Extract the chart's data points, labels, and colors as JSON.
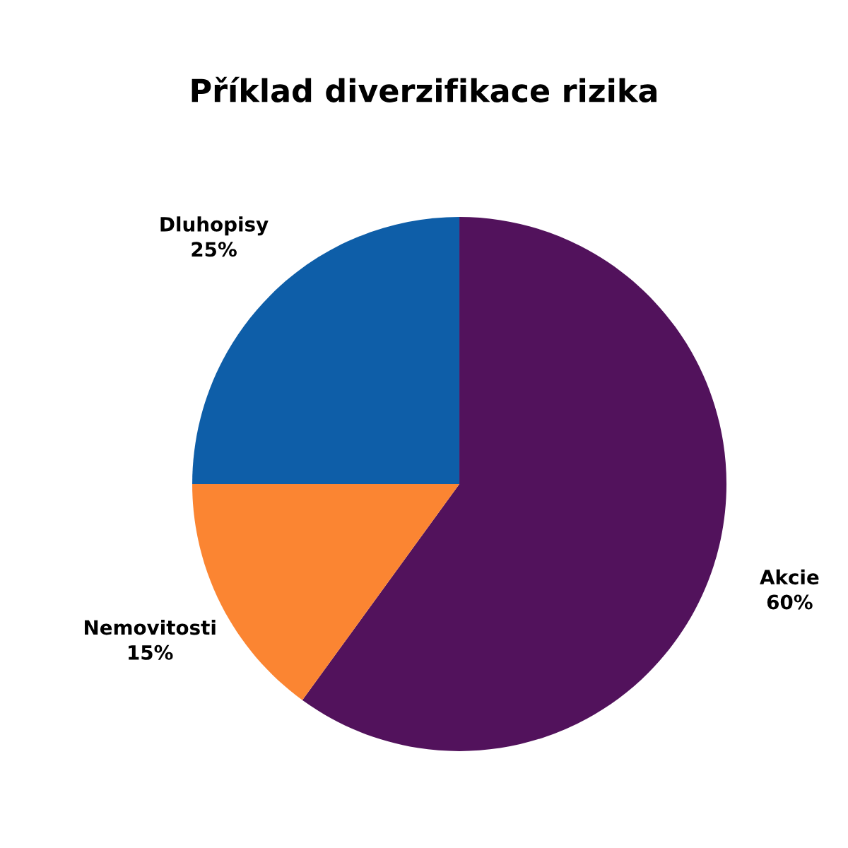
{
  "chart_data": {
    "type": "pie",
    "title": "Příklad diverzifikace rizika",
    "categories": [
      "Akcie",
      "Nemovitosti",
      "Dluhopisy"
    ],
    "values": [
      60,
      15,
      25
    ],
    "value_labels": [
      "60%",
      "15%",
      "25%"
    ],
    "colors": [
      "#52125c",
      "#fb8532",
      "#0e5ea8"
    ]
  }
}
